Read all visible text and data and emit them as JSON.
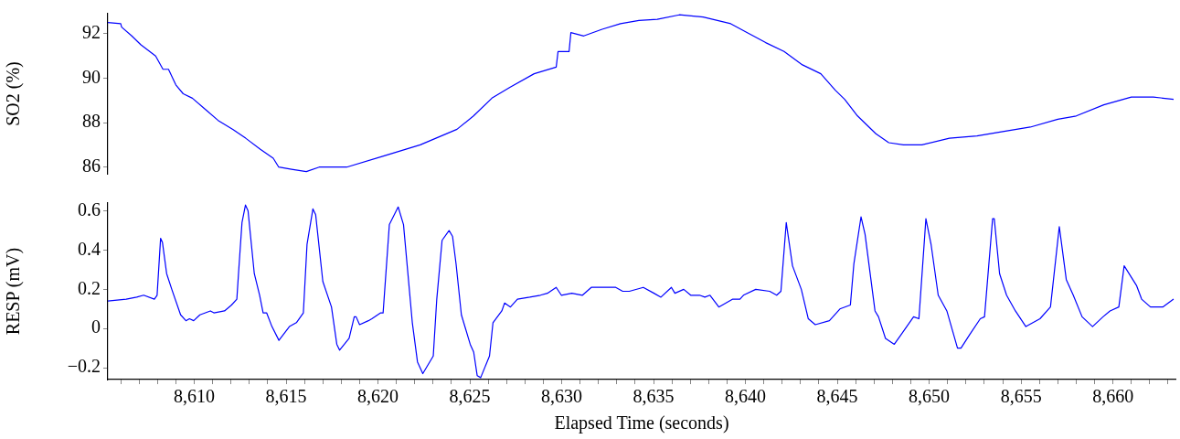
{
  "chart_data": [
    {
      "type": "line",
      "ylabel": "SO2 (%)",
      "xlim": [
        8605.3,
        8663.4
      ],
      "ylim": [
        85.7,
        92.9
      ],
      "yticks": [
        86,
        88,
        90,
        92
      ],
      "tick_labels": "y",
      "series": [
        {
          "color": "#0000ff",
          "x": [
            8605.3,
            8606.0,
            8606.05,
            8606.6,
            8607.1,
            8607.9,
            8608.3,
            8608.6,
            8609.0,
            8609.4,
            8609.9,
            8610.6,
            8611.3,
            8612.1,
            8612.8,
            8613.6,
            8614.3,
            8614.6,
            8615.3,
            8616.1,
            8616.8,
            8618.3,
            8620.3,
            8622.3,
            8624.3,
            8625.2,
            8626.2,
            8627.2,
            8628.5,
            8629.7,
            8629.8,
            8630.4,
            8630.5,
            8631.2,
            8632.2,
            8633.2,
            8634.2,
            8635.2,
            8636.4,
            8637.7,
            8639.2,
            8640.1,
            8641.1,
            8642.1,
            8643.1,
            8644.1,
            8644.9,
            8645.4,
            8646.1,
            8647.1,
            8647.8,
            8648.6,
            8649.6,
            8651.1,
            8652.6,
            8654.0,
            8655.5,
            8657.0,
            8658.0,
            8659.5,
            8661.0,
            8662.2,
            8663.3
          ],
          "values": [
            92.5,
            92.45,
            92.3,
            91.9,
            91.5,
            91.0,
            90.4,
            90.4,
            89.7,
            89.3,
            89.1,
            88.6,
            88.1,
            87.7,
            87.3,
            86.8,
            86.4,
            86.0,
            85.9,
            85.8,
            86.0,
            86.0,
            86.5,
            87.0,
            87.7,
            88.3,
            89.1,
            89.6,
            90.2,
            90.5,
            91.2,
            91.2,
            92.05,
            91.9,
            92.2,
            92.45,
            92.6,
            92.65,
            92.85,
            92.75,
            92.45,
            92.05,
            91.6,
            91.2,
            90.6,
            90.2,
            89.45,
            89.05,
            88.3,
            87.5,
            87.1,
            87.0,
            87.0,
            87.3,
            87.4,
            87.6,
            87.8,
            88.15,
            88.3,
            88.8,
            89.15,
            89.15,
            89.05
          ]
        }
      ]
    },
    {
      "type": "line",
      "xlabel": "Elapsed Time (seconds)",
      "ylabel": "RESP (mV)",
      "xlim": [
        8605.3,
        8663.4
      ],
      "ylim": [
        -0.26,
        0.64
      ],
      "yticks": [
        {
          "value": -0.2,
          "label": "−0.2"
        },
        0,
        0.2,
        0.4,
        0.6
      ],
      "xticks": [
        {
          "value": 8606,
          "label": null
        },
        {
          "value": 8607,
          "label": null
        },
        {
          "value": 8608,
          "label": null
        },
        {
          "value": 8609,
          "label": null
        },
        {
          "value": 8610,
          "label": "8,610"
        },
        {
          "value": 8611,
          "label": null
        },
        {
          "value": 8612,
          "label": null
        },
        {
          "value": 8613,
          "label": null
        },
        {
          "value": 8614,
          "label": null
        },
        {
          "value": 8615,
          "label": "8,615"
        },
        {
          "value": 8616,
          "label": null
        },
        {
          "value": 8617,
          "label": null
        },
        {
          "value": 8618,
          "label": null
        },
        {
          "value": 8619,
          "label": null
        },
        {
          "value": 8620,
          "label": "8,620"
        },
        {
          "value": 8621,
          "label": null
        },
        {
          "value": 8622,
          "label": null
        },
        {
          "value": 8623,
          "label": null
        },
        {
          "value": 8624,
          "label": null
        },
        {
          "value": 8625,
          "label": "8,625"
        },
        {
          "value": 8626,
          "label": null
        },
        {
          "value": 8627,
          "label": null
        },
        {
          "value": 8628,
          "label": null
        },
        {
          "value": 8629,
          "label": null
        },
        {
          "value": 8630,
          "label": "8,630"
        },
        {
          "value": 8631,
          "label": null
        },
        {
          "value": 8632,
          "label": null
        },
        {
          "value": 8633,
          "label": null
        },
        {
          "value": 8634,
          "label": null
        },
        {
          "value": 8635,
          "label": "8,635"
        },
        {
          "value": 8636,
          "label": null
        },
        {
          "value": 8637,
          "label": null
        },
        {
          "value": 8638,
          "label": null
        },
        {
          "value": 8639,
          "label": null
        },
        {
          "value": 8640,
          "label": "8,640"
        },
        {
          "value": 8641,
          "label": null
        },
        {
          "value": 8642,
          "label": null
        },
        {
          "value": 8643,
          "label": null
        },
        {
          "value": 8644,
          "label": null
        },
        {
          "value": 8645,
          "label": "8,645"
        },
        {
          "value": 8646,
          "label": null
        },
        {
          "value": 8647,
          "label": null
        },
        {
          "value": 8648,
          "label": null
        },
        {
          "value": 8649,
          "label": null
        },
        {
          "value": 8650,
          "label": "8,650"
        },
        {
          "value": 8651,
          "label": null
        },
        {
          "value": 8652,
          "label": null
        },
        {
          "value": 8653,
          "label": null
        },
        {
          "value": 8654,
          "label": null
        },
        {
          "value": 8655,
          "label": "8,655"
        },
        {
          "value": 8656,
          "label": null
        },
        {
          "value": 8657,
          "label": null
        },
        {
          "value": 8658,
          "label": null
        },
        {
          "value": 8659,
          "label": null
        },
        {
          "value": 8660,
          "label": "8,660"
        },
        {
          "value": 8661,
          "label": null
        },
        {
          "value": 8662,
          "label": null
        },
        {
          "value": 8663,
          "label": null
        }
      ],
      "series": [
        {
          "color": "#0000ff",
          "x": [
            8605.3,
            8606.3,
            8606.87,
            8607.25,
            8607.83,
            8607.98,
            8608.17,
            8608.27,
            8608.5,
            8608.78,
            8609.26,
            8609.55,
            8609.74,
            8609.97,
            8610.31,
            8610.88,
            8611.07,
            8611.65,
            8612.03,
            8612.32,
            8612.41,
            8612.6,
            8612.79,
            8612.93,
            8613.27,
            8613.56,
            8613.75,
            8613.94,
            8614.23,
            8614.61,
            8615.18,
            8615.56,
            8615.94,
            8616.14,
            8616.46,
            8616.61,
            8617.0,
            8617.47,
            8617.76,
            8617.91,
            8618.43,
            8618.71,
            8618.81,
            8619.0,
            8619.48,
            8619.67,
            8620.15,
            8620.28,
            8620.62,
            8621.1,
            8621.39,
            8621.87,
            8622.15,
            8622.44,
            8623.01,
            8623.2,
            8623.49,
            8623.87,
            8624.06,
            8624.25,
            8624.54,
            8625.02,
            8625.21,
            8625.4,
            8625.59,
            8626.07,
            8626.26,
            8626.74,
            8626.89,
            8627.21,
            8627.59,
            8628.26,
            8628.84,
            8629.22,
            8629.7,
            8629.98,
            8630.55,
            8631.13,
            8631.61,
            8632.27,
            8632.94,
            8633.32,
            8633.68,
            8634.44,
            8635.02,
            8635.4,
            8635.97,
            8636.16,
            8636.64,
            8637.02,
            8637.5,
            8637.79,
            8638.07,
            8638.55,
            8639.31,
            8639.7,
            8639.89,
            8640.56,
            8641.32,
            8641.7,
            8641.93,
            8642.22,
            8642.56,
            8643.04,
            8643.42,
            8643.8,
            8644.57,
            8645.14,
            8645.71,
            8645.9,
            8646.29,
            8646.51,
            8647.05,
            8647.24,
            8647.62,
            8648.1,
            8648.48,
            8649.15,
            8649.44,
            8649.82,
            8650.1,
            8650.49,
            8650.96,
            8651.54,
            8651.73,
            8652.21,
            8652.78,
            8653.01,
            8653.45,
            8653.54,
            8653.83,
            8654.21,
            8654.69,
            8655.26,
            8656.03,
            8656.6,
            8657.08,
            8657.46,
            8657.84,
            8658.32,
            8658.89,
            8659.46,
            8659.84,
            8660.32,
            8660.61,
            8661.28,
            8661.56,
            8662.04,
            8662.71,
            8663.3
          ],
          "values": [
            0.14,
            0.15,
            0.16,
            0.17,
            0.15,
            0.17,
            0.46,
            0.44,
            0.28,
            0.2,
            0.07,
            0.04,
            0.05,
            0.04,
            0.07,
            0.09,
            0.08,
            0.09,
            0.12,
            0.15,
            0.28,
            0.54,
            0.63,
            0.6,
            0.28,
            0.17,
            0.08,
            0.08,
            0.01,
            -0.06,
            0.01,
            0.03,
            0.08,
            0.43,
            0.61,
            0.58,
            0.24,
            0.11,
            -0.08,
            -0.11,
            -0.05,
            0.06,
            0.06,
            0.02,
            0.04,
            0.05,
            0.08,
            0.08,
            0.53,
            0.62,
            0.53,
            0.03,
            -0.17,
            -0.23,
            -0.14,
            0.15,
            0.45,
            0.5,
            0.47,
            0.33,
            0.07,
            -0.08,
            -0.12,
            -0.24,
            -0.25,
            -0.14,
            0.03,
            0.09,
            0.13,
            0.11,
            0.15,
            0.16,
            0.17,
            0.18,
            0.21,
            0.17,
            0.18,
            0.17,
            0.21,
            0.21,
            0.21,
            0.19,
            0.19,
            0.21,
            0.18,
            0.16,
            0.21,
            0.18,
            0.2,
            0.17,
            0.17,
            0.16,
            0.17,
            0.11,
            0.15,
            0.15,
            0.17,
            0.2,
            0.19,
            0.17,
            0.19,
            0.54,
            0.32,
            0.2,
            0.05,
            0.02,
            0.04,
            0.1,
            0.12,
            0.33,
            0.57,
            0.48,
            0.09,
            0.06,
            -0.05,
            -0.08,
            -0.03,
            0.06,
            0.05,
            0.56,
            0.43,
            0.17,
            0.09,
            -0.1,
            -0.1,
            -0.03,
            0.05,
            0.06,
            0.56,
            0.56,
            0.28,
            0.17,
            0.09,
            0.01,
            0.05,
            0.11,
            0.52,
            0.25,
            0.17,
            0.06,
            0.01,
            0.06,
            0.09,
            0.11,
            0.32,
            0.22,
            0.15,
            0.11,
            0.11,
            0.15
          ]
        }
      ]
    }
  ]
}
